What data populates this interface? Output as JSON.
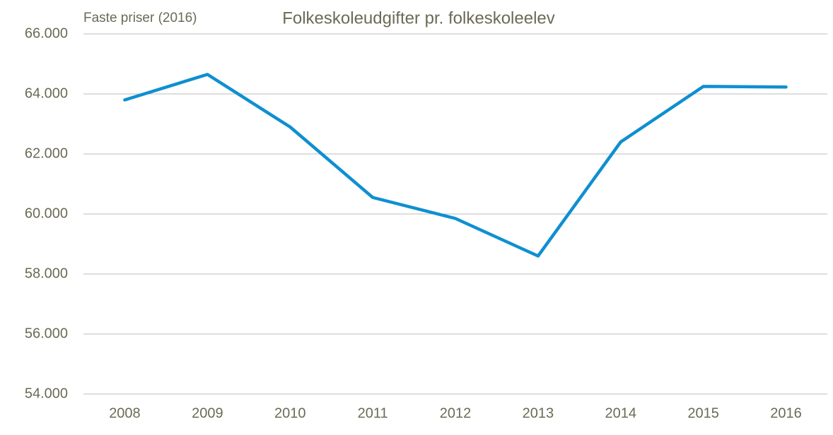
{
  "chart_data": {
    "type": "line",
    "title": "Folkeskoleudgifter pr. folkeskoleelev",
    "subtitle": "Faste priser (2016)",
    "categories": [
      "2008",
      "2009",
      "2010",
      "2011",
      "2012",
      "2013",
      "2014",
      "2015",
      "2016"
    ],
    "values": [
      63800,
      64650,
      62900,
      60550,
      59850,
      58600,
      62400,
      64250,
      64230
    ],
    "color": "#0f8fd1",
    "ylim": [
      54000,
      66000
    ],
    "yticks": [
      {
        "value": 54000,
        "label": "54.000"
      },
      {
        "value": 56000,
        "label": "56.000"
      },
      {
        "value": 58000,
        "label": "58.000"
      },
      {
        "value": 60000,
        "label": "60.000"
      },
      {
        "value": 62000,
        "label": "62.000"
      },
      {
        "value": 64000,
        "label": "64.000"
      },
      {
        "value": 66000,
        "label": "66.000"
      }
    ],
    "grid": true
  }
}
